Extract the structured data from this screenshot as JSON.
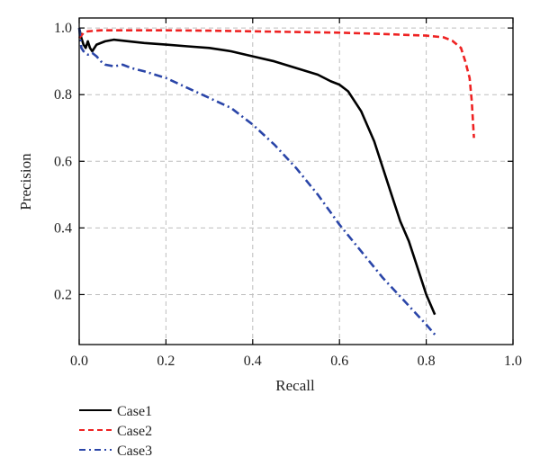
{
  "chart_data": {
    "type": "line",
    "xlabel": "Recall",
    "ylabel": "Precision",
    "xlim": [
      0.0,
      1.0
    ],
    "ylim": [
      0.05,
      1.03
    ],
    "xticks": [
      0.0,
      0.2,
      0.4,
      0.6,
      0.8,
      1.0
    ],
    "xtick_labels": [
      "0.0",
      "0.2",
      "0.4",
      "0.6",
      "0.8",
      "1.0"
    ],
    "yticks": [
      0.2,
      0.4,
      0.6,
      0.8,
      1.0
    ],
    "ytick_labels": [
      "0.2",
      "0.4",
      "0.6",
      "0.8",
      "1.0"
    ],
    "grid": true,
    "legend_position": "below-left",
    "series": [
      {
        "name": "Case1",
        "color": "#000000",
        "dash": "solid",
        "points": [
          [
            0.0,
            1.0
          ],
          [
            0.005,
            0.97
          ],
          [
            0.01,
            0.95
          ],
          [
            0.015,
            0.94
          ],
          [
            0.02,
            0.96
          ],
          [
            0.025,
            0.94
          ],
          [
            0.03,
            0.93
          ],
          [
            0.04,
            0.95
          ],
          [
            0.06,
            0.96
          ],
          [
            0.08,
            0.965
          ],
          [
            0.1,
            0.962
          ],
          [
            0.15,
            0.955
          ],
          [
            0.2,
            0.95
          ],
          [
            0.25,
            0.945
          ],
          [
            0.3,
            0.94
          ],
          [
            0.35,
            0.93
          ],
          [
            0.4,
            0.915
          ],
          [
            0.45,
            0.9
          ],
          [
            0.5,
            0.88
          ],
          [
            0.55,
            0.86
          ],
          [
            0.58,
            0.84
          ],
          [
            0.6,
            0.83
          ],
          [
            0.62,
            0.81
          ],
          [
            0.65,
            0.75
          ],
          [
            0.68,
            0.66
          ],
          [
            0.7,
            0.58
          ],
          [
            0.72,
            0.5
          ],
          [
            0.74,
            0.42
          ],
          [
            0.76,
            0.36
          ],
          [
            0.78,
            0.28
          ],
          [
            0.8,
            0.2
          ],
          [
            0.82,
            0.14
          ]
        ]
      },
      {
        "name": "Case2",
        "color": "#ee2222",
        "dash": "dashed",
        "points": [
          [
            0.0,
            0.97
          ],
          [
            0.01,
            0.985
          ],
          [
            0.02,
            0.99
          ],
          [
            0.05,
            0.993
          ],
          [
            0.1,
            0.993
          ],
          [
            0.2,
            0.993
          ],
          [
            0.3,
            0.992
          ],
          [
            0.4,
            0.99
          ],
          [
            0.5,
            0.988
          ],
          [
            0.6,
            0.986
          ],
          [
            0.7,
            0.982
          ],
          [
            0.8,
            0.977
          ],
          [
            0.84,
            0.972
          ],
          [
            0.86,
            0.962
          ],
          [
            0.88,
            0.94
          ],
          [
            0.89,
            0.9
          ],
          [
            0.9,
            0.85
          ],
          [
            0.905,
            0.78
          ],
          [
            0.91,
            0.67
          ]
        ]
      },
      {
        "name": "Case3",
        "color": "#2a45a8",
        "dash": "dashdot",
        "points": [
          [
            0.0,
            1.0
          ],
          [
            0.005,
            0.94
          ],
          [
            0.01,
            0.93
          ],
          [
            0.02,
            0.92
          ],
          [
            0.03,
            0.925
          ],
          [
            0.04,
            0.915
          ],
          [
            0.05,
            0.9
          ],
          [
            0.06,
            0.89
          ],
          [
            0.08,
            0.885
          ],
          [
            0.1,
            0.89
          ],
          [
            0.12,
            0.88
          ],
          [
            0.15,
            0.87
          ],
          [
            0.2,
            0.85
          ],
          [
            0.25,
            0.82
          ],
          [
            0.3,
            0.79
          ],
          [
            0.35,
            0.76
          ],
          [
            0.4,
            0.71
          ],
          [
            0.45,
            0.65
          ],
          [
            0.5,
            0.58
          ],
          [
            0.55,
            0.5
          ],
          [
            0.6,
            0.41
          ],
          [
            0.65,
            0.33
          ],
          [
            0.7,
            0.25
          ],
          [
            0.75,
            0.18
          ],
          [
            0.8,
            0.11
          ],
          [
            0.82,
            0.08
          ]
        ]
      }
    ]
  }
}
